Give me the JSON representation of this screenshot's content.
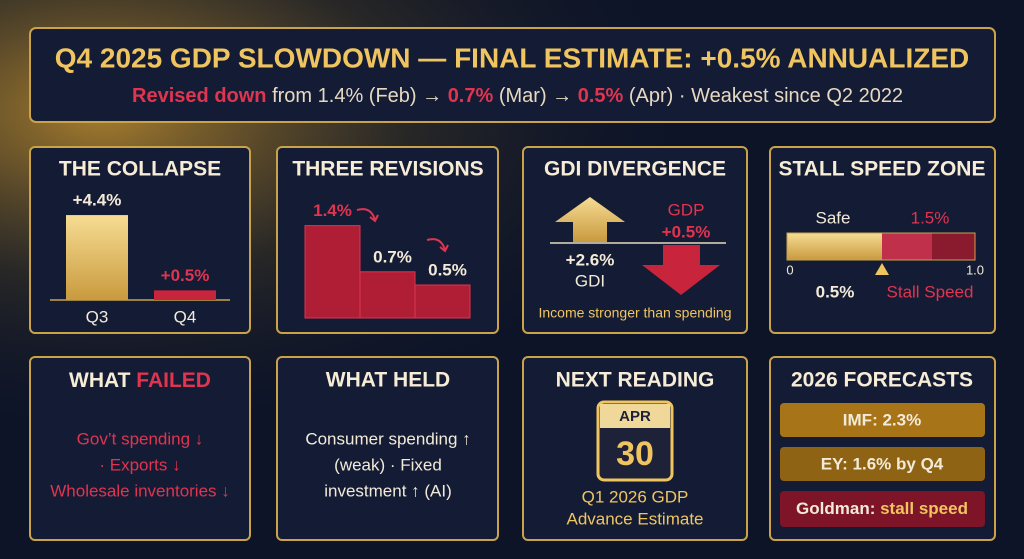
{
  "header": {
    "title": "Q4 2025 GDP SLOWDOWN — FINAL ESTIMATE: +0.5% ANNUALIZED",
    "subtitle": [
      "Revised down",
      " from 1.4% (Feb) → ",
      "0.7%",
      " (Mar) → ",
      "0.5%",
      " (Apr) · Weakest since Q2 2022"
    ]
  },
  "collapse": {
    "title": "THE COLLAPSE",
    "categories": [
      "Q3",
      "Q4"
    ],
    "values": [
      4.4,
      0.5
    ],
    "value_labels": [
      "+4.4%",
      "+0.5%"
    ]
  },
  "revisions": {
    "title": "THREE REVISIONS",
    "values": [
      1.4,
      0.7,
      0.5
    ],
    "value_labels": [
      "1.4%",
      "0.7%",
      "0.5%"
    ]
  },
  "gdi": {
    "title": "GDI DIVERGENCE",
    "gdp_label": "GDP",
    "gdp_value": "+0.5%",
    "gdi_value": "+2.6%",
    "gdi_label": "GDI",
    "note": "Income stronger than spending"
  },
  "stall": {
    "title": "STALL SPEED ZONE",
    "safe_label": "Safe",
    "threshold_label": "1.5%",
    "scale_min": "0",
    "scale_max": "1.0",
    "marker_label": "0.5%",
    "zone_label": "Stall Speed"
  },
  "failed": {
    "title": [
      "WHAT ",
      "FAILED"
    ],
    "lines": [
      "Gov’t spending ↓",
      "· Exports ↓",
      "Wholesale inventories ↓"
    ]
  },
  "held": {
    "title": "WHAT HELD",
    "lines": [
      "Consumer spending ↑",
      "(weak) · Fixed",
      "investment ↑ (AI)"
    ]
  },
  "next": {
    "title": "NEXT READING",
    "month": "APR",
    "day": "30",
    "lines": [
      "Q1 2026 GDP",
      "Advance Estimate"
    ]
  },
  "forecasts": {
    "title": "2026 FORECASTS",
    "items": [
      "IMF: 2.3%",
      "EY: 1.6% by Q4"
    ],
    "goldman": [
      "Goldman: ",
      "stall speed"
    ]
  }
}
